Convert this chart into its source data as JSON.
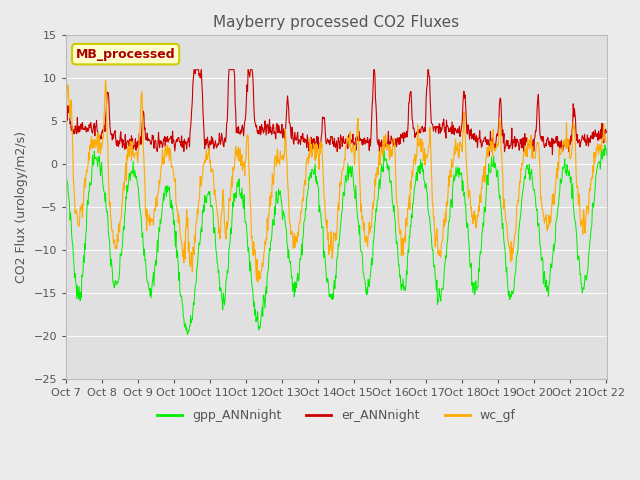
{
  "title": "Mayberry processed CO2 Fluxes",
  "ylabel": "CO2 Flux (urology/m2/s)",
  "ylim": [
    -25,
    15
  ],
  "yticks": [
    -25,
    -20,
    -15,
    -10,
    -5,
    0,
    5,
    10,
    15
  ],
  "bg_color": "#ebebeb",
  "plot_bg_color": "#e0e0e0",
  "legend_label": "MB_processed",
  "legend_text_color": "#aa0000",
  "legend_box_color": "#ffffcc",
  "legend_box_edge": "#cccc00",
  "series_colors": {
    "gpp": "#00ee00",
    "er": "#cc0000",
    "wc": "#ffaa00"
  },
  "xtick_labels": [
    "Oct 7",
    "Oct 8",
    "Oct 9",
    "Oct 10",
    "Oct 11",
    "Oct 12",
    "Oct 13",
    "Oct 14",
    "Oct 15",
    "Oct 16",
    "Oct 17",
    "Oct 18",
    "Oct 19",
    "Oct 20",
    "Oct 21",
    "Oct 22"
  ],
  "legend_entries": [
    "gpp_ANNnight",
    "er_ANNnight",
    "wc_gf"
  ],
  "title_color": "#555555",
  "tick_color": "#555555",
  "grid_color": "#ffffff"
}
